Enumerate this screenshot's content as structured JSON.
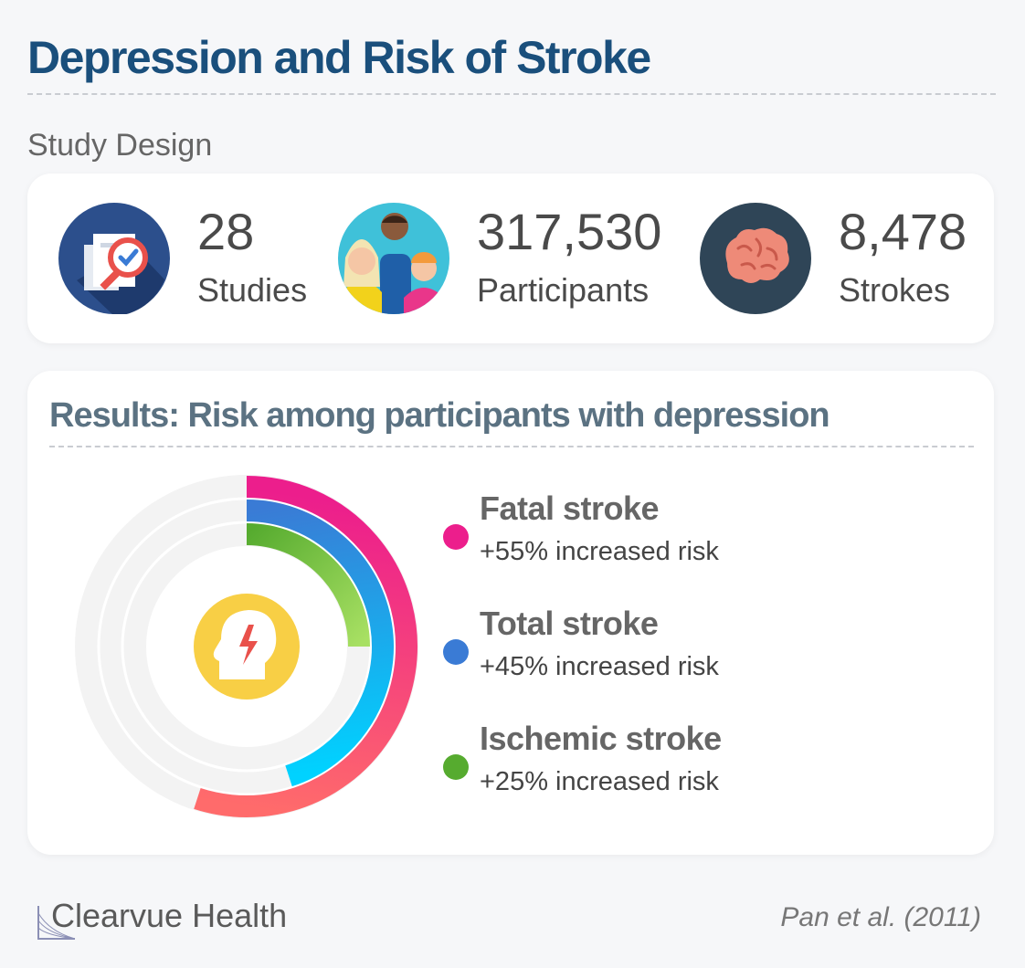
{
  "title": "Depression and Risk of Stroke",
  "study_design_label": "Study Design",
  "stats": [
    {
      "value": "28",
      "label": "Studies",
      "icon": "document-magnifier-icon"
    },
    {
      "value": "317,530",
      "label": "Participants",
      "icon": "people-group-icon"
    },
    {
      "value": "8,478",
      "label": "Strokes",
      "icon": "brain-icon"
    }
  ],
  "results_title": "Results: Risk among participants with depression",
  "center_icon": "head-lightning-icon",
  "chart_data": {
    "type": "pie",
    "subtype": "radial-bar",
    "max_value": 100,
    "categories": [
      "Fatal stroke",
      "Total stroke",
      "Ischemic stroke"
    ],
    "values": [
      55,
      45,
      25
    ],
    "series": [
      {
        "name": "Fatal stroke",
        "value": 55,
        "label": "+55% increased risk",
        "color": "#ec1e8c",
        "color_end": "#ff6b6b"
      },
      {
        "name": "Total stroke",
        "value": 45,
        "label": "+45% increased risk",
        "color": "#3a7bd5",
        "color_end": "#00d2ff"
      },
      {
        "name": "Ischemic stroke",
        "value": 25,
        "label": "+25% increased risk",
        "color": "#56ab2f",
        "color_end": "#a8e063"
      }
    ],
    "legend": "right"
  },
  "brand": "Clearvue Health",
  "citation": "Pan et al. (2011)"
}
